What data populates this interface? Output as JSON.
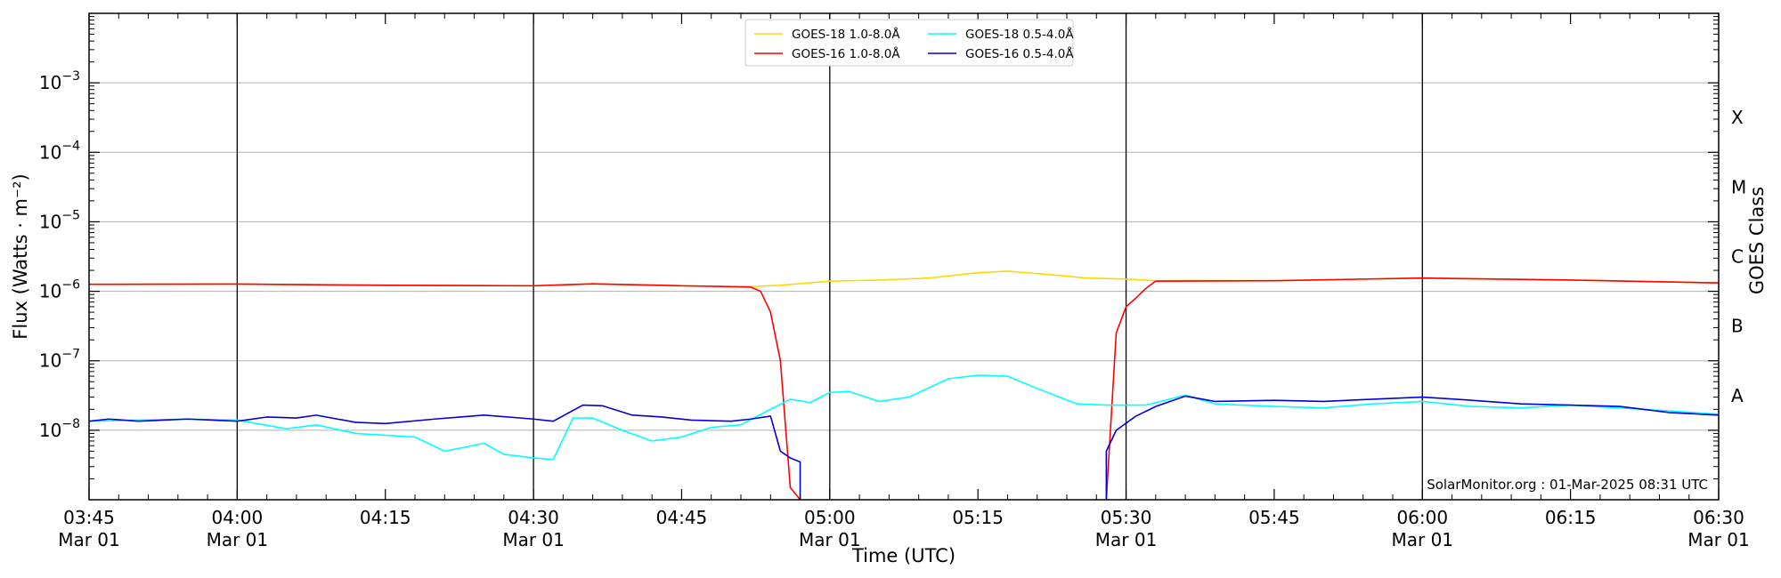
{
  "chart_data": {
    "type": "line",
    "title": "",
    "xlabel": "Time (UTC)",
    "ylabel": "Flux (Watts · m⁻²)",
    "y2label": "GOES Class",
    "yscale": "log",
    "ylim": [
      1e-09,
      0.01
    ],
    "x_range": [
      "03:45",
      "06:30"
    ],
    "x_ticks": [
      {
        "time": "03:45",
        "date": "Mar 01"
      },
      {
        "time": "04:00",
        "date": "Mar 01"
      },
      {
        "time": "04:15",
        "date": ""
      },
      {
        "time": "04:30",
        "date": "Mar 01"
      },
      {
        "time": "04:45",
        "date": ""
      },
      {
        "time": "05:00",
        "date": "Mar 01"
      },
      {
        "time": "05:15",
        "date": ""
      },
      {
        "time": "05:30",
        "date": "Mar 01"
      },
      {
        "time": "05:45",
        "date": ""
      },
      {
        "time": "06:00",
        "date": "Mar 01"
      },
      {
        "time": "06:15",
        "date": ""
      },
      {
        "time": "06:30",
        "date": "Mar 01"
      }
    ],
    "y_ticks": [
      {
        "base": "10",
        "exp": "−8",
        "value": 1e-08
      },
      {
        "base": "10",
        "exp": "−7",
        "value": 1e-07
      },
      {
        "base": "10",
        "exp": "−6",
        "value": 1e-06
      },
      {
        "base": "10",
        "exp": "−5",
        "value": 1e-05
      },
      {
        "base": "10",
        "exp": "−4",
        "value": 0.0001
      },
      {
        "base": "10",
        "exp": "−3",
        "value": 0.001
      }
    ],
    "goes_classes": [
      {
        "label": "A",
        "value": 3.16e-08
      },
      {
        "label": "B",
        "value": 3.16e-07
      },
      {
        "label": "C",
        "value": 3.16e-06
      },
      {
        "label": "M",
        "value": 3.16e-05
      },
      {
        "label": "X",
        "value": 0.000316
      }
    ],
    "vertical_lines": [
      "04:00",
      "04:30",
      "05:00",
      "05:30",
      "06:00"
    ],
    "grid": "horizontal",
    "legend_position": "top-center",
    "credit": "SolarMonitor.org : 01-Mar-2025 08:31 UTC",
    "series": [
      {
        "name": "GOES-18 1.0-8.0Å",
        "color": "#ffd700",
        "points": [
          [
            "03:45",
            1.26e-06
          ],
          [
            "04:00",
            1.27e-06
          ],
          [
            "04:15",
            1.22e-06
          ],
          [
            "04:30",
            1.2e-06
          ],
          [
            "04:36",
            1.28e-06
          ],
          [
            "04:45",
            1.2e-06
          ],
          [
            "04:52",
            1.17e-06
          ],
          [
            "04:55",
            1.22e-06
          ],
          [
            "05:00",
            1.4e-06
          ],
          [
            "05:05",
            1.45e-06
          ],
          [
            "05:10",
            1.55e-06
          ],
          [
            "05:15",
            1.85e-06
          ],
          [
            "05:18",
            1.95e-06
          ],
          [
            "05:22",
            1.75e-06
          ],
          [
            "05:26",
            1.55e-06
          ],
          [
            "05:30",
            1.5e-06
          ],
          [
            "05:33",
            1.42e-06
          ],
          [
            "05:36",
            1.43e-06
          ],
          [
            "05:45",
            1.42e-06
          ],
          [
            "06:00",
            1.55e-06
          ],
          [
            "06:15",
            1.45e-06
          ],
          [
            "06:30",
            1.32e-06
          ]
        ]
      },
      {
        "name": "GOES-16 1.0-8.0Å",
        "color": "#ff0000",
        "points": [
          [
            "03:45",
            1.26e-06
          ],
          [
            "04:00",
            1.27e-06
          ],
          [
            "04:15",
            1.22e-06
          ],
          [
            "04:30",
            1.2e-06
          ],
          [
            "04:36",
            1.28e-06
          ],
          [
            "04:45",
            1.2e-06
          ],
          [
            "04:52",
            1.15e-06
          ],
          [
            "04:53",
            1e-06
          ],
          [
            "04:54",
            5e-07
          ],
          [
            "04:55",
            1e-07
          ],
          [
            "04:56",
            1.5e-09
          ],
          [
            "04:57",
            1e-09
          ],
          null,
          [
            "05:28",
            1e-09
          ],
          [
            "05:29",
            2.5e-07
          ],
          [
            "05:30",
            6e-07
          ],
          [
            "05:31",
            8e-07
          ],
          [
            "05:32",
            1.1e-06
          ],
          [
            "05:33",
            1.4e-06
          ],
          [
            "05:45",
            1.42e-06
          ],
          [
            "06:00",
            1.55e-06
          ],
          [
            "06:15",
            1.45e-06
          ],
          [
            "06:30",
            1.32e-06
          ]
        ]
      },
      {
        "name": "GOES-18 0.5-4.0Å",
        "color": "#00ffff",
        "points": [
          [
            "03:45",
            1.35e-08
          ],
          [
            "03:50",
            1.4e-08
          ],
          [
            "03:55",
            1.45e-08
          ],
          [
            "04:00",
            1.4e-08
          ],
          [
            "04:05",
            1.05e-08
          ],
          [
            "04:08",
            1.2e-08
          ],
          [
            "04:12",
            9e-09
          ],
          [
            "04:18",
            8e-09
          ],
          [
            "04:21",
            5e-09
          ],
          [
            "04:25",
            6.5e-09
          ],
          [
            "04:27",
            4.5e-09
          ],
          [
            "04:30",
            4e-09
          ],
          [
            "04:32",
            3.8e-09
          ],
          [
            "04:34",
            1.5e-08
          ],
          [
            "04:36",
            1.5e-08
          ],
          [
            "04:39",
            1e-08
          ],
          [
            "04:42",
            7e-09
          ],
          [
            "04:45",
            8e-09
          ],
          [
            "04:48",
            1.1e-08
          ],
          [
            "04:51",
            1.2e-08
          ],
          [
            "04:54",
            2e-08
          ],
          [
            "04:56",
            2.8e-08
          ],
          [
            "04:58",
            2.5e-08
          ],
          [
            "05:00",
            3.5e-08
          ],
          [
            "05:02",
            3.6e-08
          ],
          [
            "05:05",
            2.6e-08
          ],
          [
            "05:08",
            3e-08
          ],
          [
            "05:12",
            5.5e-08
          ],
          [
            "05:15",
            6.2e-08
          ],
          [
            "05:18",
            6e-08
          ],
          [
            "05:21",
            4e-08
          ],
          [
            "05:25",
            2.4e-08
          ],
          [
            "05:28",
            2.3e-08
          ],
          [
            "05:32",
            2.3e-08
          ],
          [
            "05:36",
            3.2e-08
          ],
          [
            "05:39",
            2.4e-08
          ],
          [
            "05:45",
            2.2e-08
          ],
          [
            "05:50",
            2.1e-08
          ],
          [
            "05:55",
            2.4e-08
          ],
          [
            "06:00",
            2.6e-08
          ],
          [
            "06:05",
            2.2e-08
          ],
          [
            "06:10",
            2.1e-08
          ],
          [
            "06:15",
            2.3e-08
          ],
          [
            "06:20",
            2.1e-08
          ],
          [
            "06:25",
            1.9e-08
          ],
          [
            "06:30",
            1.7e-08
          ]
        ]
      },
      {
        "name": "GOES-16 0.5-4.0Å",
        "color": "#0000dd",
        "points": [
          [
            "03:45",
            1.35e-08
          ],
          [
            "03:47",
            1.45e-08
          ],
          [
            "03:50",
            1.35e-08
          ],
          [
            "03:55",
            1.45e-08
          ],
          [
            "04:00",
            1.35e-08
          ],
          [
            "04:03",
            1.55e-08
          ],
          [
            "04:06",
            1.5e-08
          ],
          [
            "04:08",
            1.65e-08
          ],
          [
            "04:12",
            1.3e-08
          ],
          [
            "04:15",
            1.25e-08
          ],
          [
            "04:20",
            1.45e-08
          ],
          [
            "04:25",
            1.65e-08
          ],
          [
            "04:30",
            1.45e-08
          ],
          [
            "04:32",
            1.35e-08
          ],
          [
            "04:35",
            2.3e-08
          ],
          [
            "04:37",
            2.25e-08
          ],
          [
            "04:40",
            1.65e-08
          ],
          [
            "04:43",
            1.55e-08
          ],
          [
            "04:46",
            1.4e-08
          ],
          [
            "04:50",
            1.35e-08
          ],
          [
            "04:52",
            1.45e-08
          ],
          [
            "04:54",
            1.6e-08
          ],
          [
            "04:55",
            5e-09
          ],
          [
            "04:56",
            4e-09
          ],
          [
            "04:57",
            3.5e-09
          ],
          [
            "04:57",
            1e-09
          ],
          null,
          [
            "05:28",
            1e-09
          ],
          [
            "05:28",
            5e-09
          ],
          [
            "05:29",
            1e-08
          ],
          [
            "05:31",
            1.6e-08
          ],
          [
            "05:33",
            2.2e-08
          ],
          [
            "05:36",
            3.1e-08
          ],
          [
            "05:39",
            2.6e-08
          ],
          [
            "05:45",
            2.7e-08
          ],
          [
            "05:50",
            2.6e-08
          ],
          [
            "05:55",
            2.8e-08
          ],
          [
            "06:00",
            3e-08
          ],
          [
            "06:05",
            2.7e-08
          ],
          [
            "06:10",
            2.4e-08
          ],
          [
            "06:15",
            2.3e-08
          ],
          [
            "06:20",
            2.2e-08
          ],
          [
            "06:25",
            1.8e-08
          ],
          [
            "06:30",
            1.65e-08
          ]
        ]
      }
    ]
  }
}
